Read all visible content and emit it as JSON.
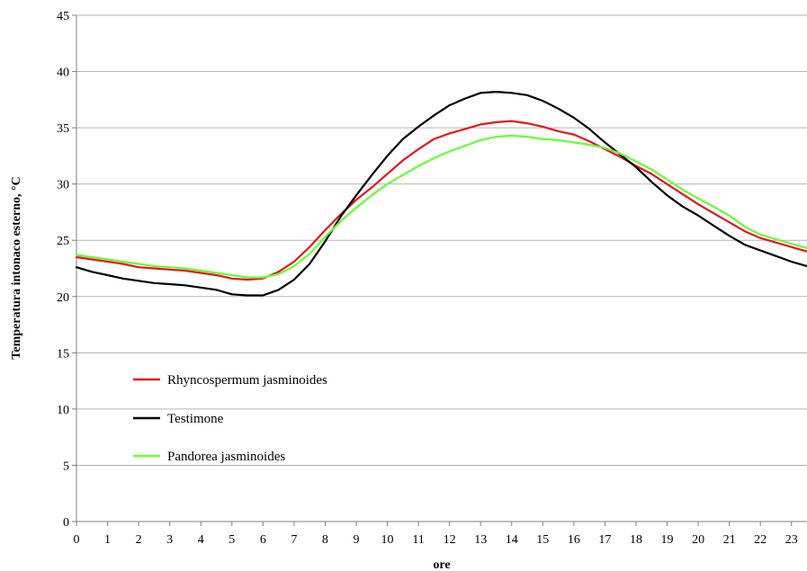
{
  "chart_data": {
    "type": "line",
    "xlabel": "ore",
    "ylabel": "Temperatura intonaco esterno, °C",
    "xlim": [
      0,
      23.5
    ],
    "ylim": [
      0,
      45
    ],
    "x_ticks": [
      0,
      1,
      2,
      3,
      4,
      5,
      6,
      7,
      8,
      9,
      10,
      11,
      12,
      13,
      14,
      15,
      16,
      17,
      18,
      19,
      20,
      21,
      22,
      23
    ],
    "y_ticks": [
      0,
      5,
      10,
      15,
      20,
      25,
      30,
      35,
      40,
      45
    ],
    "grid": "horizontal",
    "legend_position": "lower-left",
    "series": [
      {
        "name": "Rhyncospermum jasminoides",
        "color": "#e8141c",
        "x": [
          0,
          0.5,
          1,
          1.5,
          2,
          2.5,
          3,
          3.5,
          4,
          4.5,
          5,
          5.5,
          6,
          6.5,
          7,
          7.5,
          8,
          8.5,
          9,
          9.5,
          10,
          10.5,
          11,
          11.5,
          12,
          12.5,
          13,
          13.5,
          14,
          14.5,
          15,
          15.5,
          16,
          16.5,
          17,
          17.5,
          18,
          18.5,
          19,
          19.5,
          20,
          20.5,
          21,
          21.5,
          22,
          22.5,
          23,
          23.5
        ],
        "y": [
          23.5,
          23.3,
          23.1,
          22.9,
          22.6,
          22.5,
          22.4,
          22.3,
          22.1,
          21.9,
          21.6,
          21.5,
          21.6,
          22.2,
          23.1,
          24.4,
          25.9,
          27.3,
          28.6,
          29.7,
          30.9,
          32.1,
          33.1,
          34.0,
          34.5,
          34.9,
          35.3,
          35.5,
          35.6,
          35.4,
          35.1,
          34.7,
          34.4,
          33.8,
          33.1,
          32.4,
          31.6,
          30.9,
          30.0,
          29.1,
          28.2,
          27.4,
          26.6,
          25.8,
          25.2,
          24.8,
          24.4,
          24.0
        ]
      },
      {
        "name": "Testimone",
        "color": "#000000",
        "x": [
          0,
          0.5,
          1,
          1.5,
          2,
          2.5,
          3,
          3.5,
          4,
          4.5,
          5,
          5.5,
          6,
          6.5,
          7,
          7.5,
          8,
          8.5,
          9,
          9.5,
          10,
          10.5,
          11,
          11.5,
          12,
          12.5,
          13,
          13.5,
          14,
          14.5,
          15,
          15.5,
          16,
          16.5,
          17,
          17.5,
          18,
          18.5,
          19,
          19.5,
          20,
          20.5,
          21,
          21.5,
          22,
          22.5,
          23,
          23.5
        ],
        "y": [
          22.6,
          22.2,
          21.9,
          21.6,
          21.4,
          21.2,
          21.1,
          21.0,
          20.8,
          20.6,
          20.2,
          20.1,
          20.1,
          20.6,
          21.5,
          22.9,
          24.9,
          27.1,
          29.0,
          30.8,
          32.5,
          34.0,
          35.1,
          36.1,
          37.0,
          37.6,
          38.1,
          38.2,
          38.1,
          37.9,
          37.4,
          36.7,
          35.9,
          34.9,
          33.7,
          32.6,
          31.5,
          30.2,
          29.0,
          28.0,
          27.2,
          26.3,
          25.4,
          24.6,
          24.1,
          23.6,
          23.1,
          22.7
        ]
      },
      {
        "name": "Pandorea jasminoides",
        "color": "#66ff33",
        "x": [
          0,
          0.5,
          1,
          1.5,
          2,
          2.5,
          3,
          3.5,
          4,
          4.5,
          5,
          5.5,
          6,
          6.5,
          7,
          7.5,
          8,
          8.5,
          9,
          9.5,
          10,
          10.5,
          11,
          11.5,
          12,
          12.5,
          13,
          13.5,
          14,
          14.5,
          15,
          15.5,
          16,
          16.5,
          17,
          17.5,
          18,
          18.5,
          19,
          19.5,
          20,
          20.5,
          21,
          21.5,
          22,
          22.5,
          23,
          23.5
        ],
        "y": [
          23.7,
          23.5,
          23.3,
          23.1,
          22.9,
          22.7,
          22.6,
          22.5,
          22.3,
          22.1,
          21.9,
          21.7,
          21.7,
          22.0,
          22.7,
          23.8,
          25.3,
          26.7,
          27.9,
          29.0,
          30.0,
          30.8,
          31.6,
          32.3,
          32.9,
          33.4,
          33.9,
          34.2,
          34.3,
          34.2,
          34.0,
          33.9,
          33.7,
          33.5,
          33.2,
          32.7,
          32.0,
          31.3,
          30.4,
          29.5,
          28.7,
          28.0,
          27.2,
          26.2,
          25.5,
          25.1,
          24.7,
          24.3
        ]
      }
    ]
  }
}
